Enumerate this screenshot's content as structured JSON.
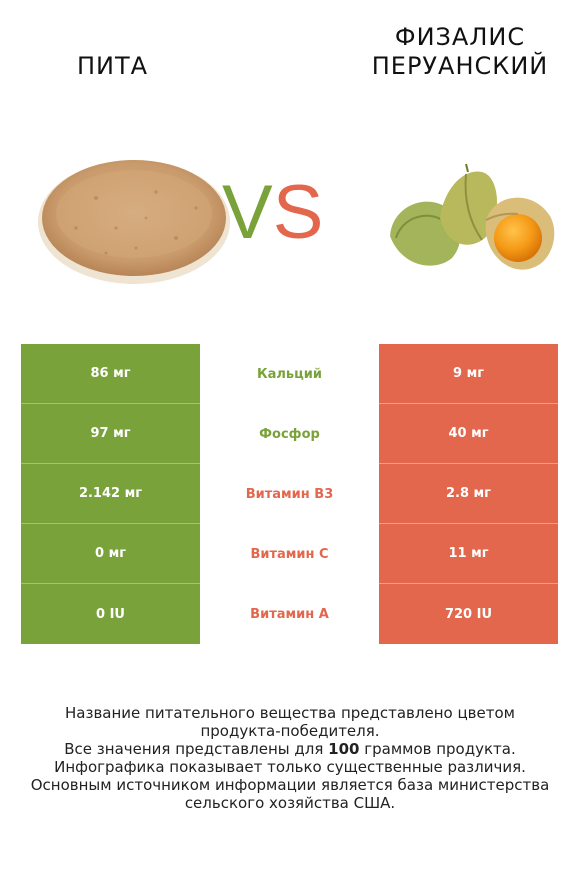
{
  "header": {
    "left_title": "ПИТА",
    "right_title_line1": "ФИЗАЛИС",
    "right_title_line2": "ПЕРУАНСКИЙ",
    "vs_v": "V",
    "vs_s": "S"
  },
  "colors": {
    "left_accent": "#7aa23a",
    "right_accent": "#e2674c"
  },
  "rows": [
    {
      "left": "86 мг",
      "nutrient": "Кальций",
      "right": "9 мг",
      "winner": "left"
    },
    {
      "left": "97 мг",
      "nutrient": "Фосфор",
      "right": "40 мг",
      "winner": "left"
    },
    {
      "left": "2.142 мг",
      "nutrient": "Витамин B3",
      "right": "2.8 мг",
      "winner": "right"
    },
    {
      "left": "0 мг",
      "nutrient": "Витамин C",
      "right": "11 мг",
      "winner": "right"
    },
    {
      "left": "0 IU",
      "nutrient": "Витамин A",
      "right": "720 IU",
      "winner": "right"
    }
  ],
  "footer": {
    "line1": "Название питательного вещества представлено цветом",
    "line2": "продукта-победителя.",
    "line3_pre": "Все значения представлены для ",
    "line3_bold": "100",
    "line3_post": " граммов продукта.",
    "line4": "Инфографика показывает только существенные различия.",
    "line5": "Основным источником информации является база министерства",
    "line6": "сельского хозяйства США."
  }
}
